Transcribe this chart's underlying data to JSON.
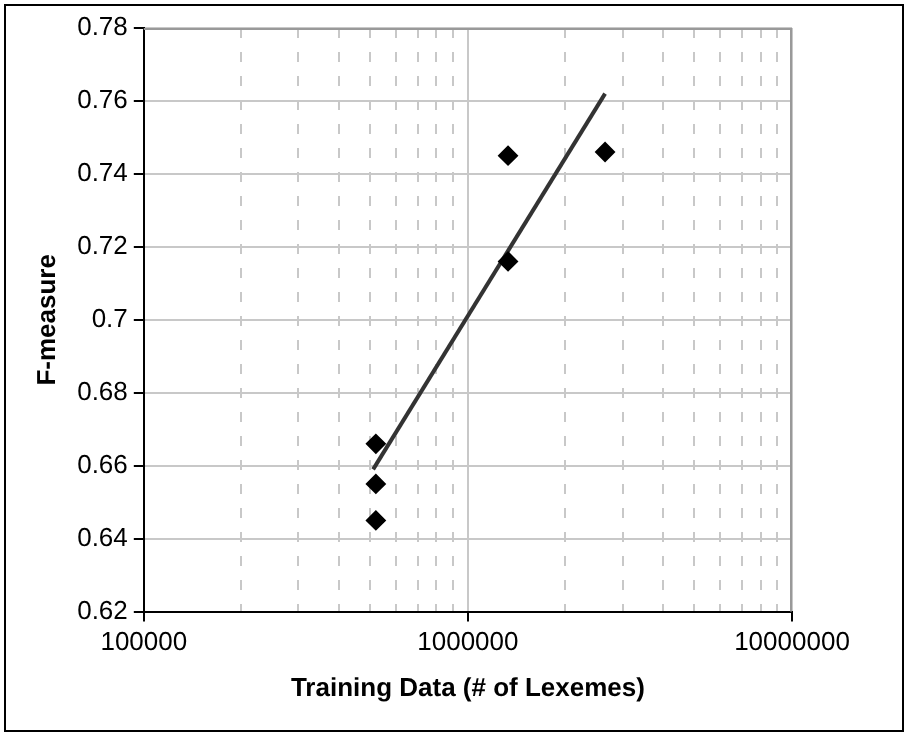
{
  "chart_data": {
    "type": "scatter",
    "xlabel": "Training Data (# of Lexemes)",
    "ylabel": "F-measure",
    "log": "x",
    "grid": true,
    "legend": false,
    "marker": "diamond",
    "xlim": [
      100000,
      10000000
    ],
    "xticks": [
      100000,
      {
        "value": 200000,
        "label": null
      },
      {
        "value": 300000,
        "label": null
      },
      {
        "value": 400000,
        "label": null
      },
      {
        "value": 500000,
        "label": null
      },
      {
        "value": 600000,
        "label": null
      },
      {
        "value": 700000,
        "label": null
      },
      {
        "value": 800000,
        "label": null
      },
      {
        "value": 900000,
        "label": null
      },
      1000000,
      {
        "value": 2000000,
        "label": null
      },
      {
        "value": 3000000,
        "label": null
      },
      {
        "value": 4000000,
        "label": null
      },
      {
        "value": 5000000,
        "label": null
      },
      {
        "value": 6000000,
        "label": null
      },
      {
        "value": 7000000,
        "label": null
      },
      {
        "value": 8000000,
        "label": null
      },
      {
        "value": 9000000,
        "label": null
      },
      10000000
    ],
    "ylim": [
      0.62,
      0.78
    ],
    "yticks": [
      0.62,
      0.64,
      0.66,
      0.68,
      0.7,
      0.72,
      0.74,
      0.76,
      0.78
    ],
    "series": [
      {
        "type": "scatter",
        "color": "#000000",
        "x": [
          520000,
          520000,
          520000,
          1330000,
          1330000,
          2650000
        ],
        "values": [
          0.666,
          0.655,
          0.645,
          0.745,
          0.716,
          0.746
        ]
      },
      {
        "type": "line",
        "color": "#333333",
        "marker": "none",
        "x": [
          510000,
          2650000
        ],
        "values": [
          0.659,
          0.762
        ]
      }
    ]
  }
}
